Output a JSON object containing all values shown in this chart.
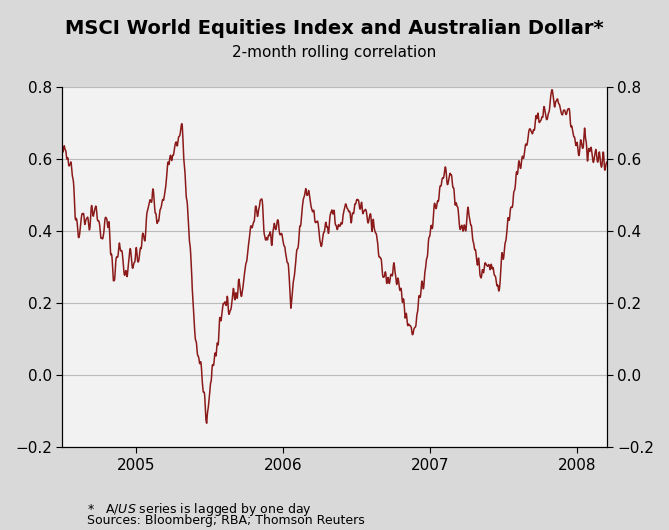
{
  "title": "MSCI World Equities Index and Australian Dollar*",
  "subtitle": "2-month rolling correlation",
  "footnote1": "*   A$/US$ series is lagged by one day",
  "footnote2": "Sources: Bloomberg; RBA; Thomson Reuters",
  "line_color": "#8B1A1A",
  "line_width": 1.1,
  "background_color": "#d9d9d9",
  "plot_bg_color": "#f2f2f2",
  "ylim": [
    -0.2,
    0.8
  ],
  "yticks": [
    -0.2,
    0.0,
    0.2,
    0.4,
    0.6,
    0.8
  ],
  "grid_color": "#bbbbbb",
  "title_fontsize": 14,
  "subtitle_fontsize": 11,
  "tick_fontsize": 11,
  "footnote_fontsize": 9
}
